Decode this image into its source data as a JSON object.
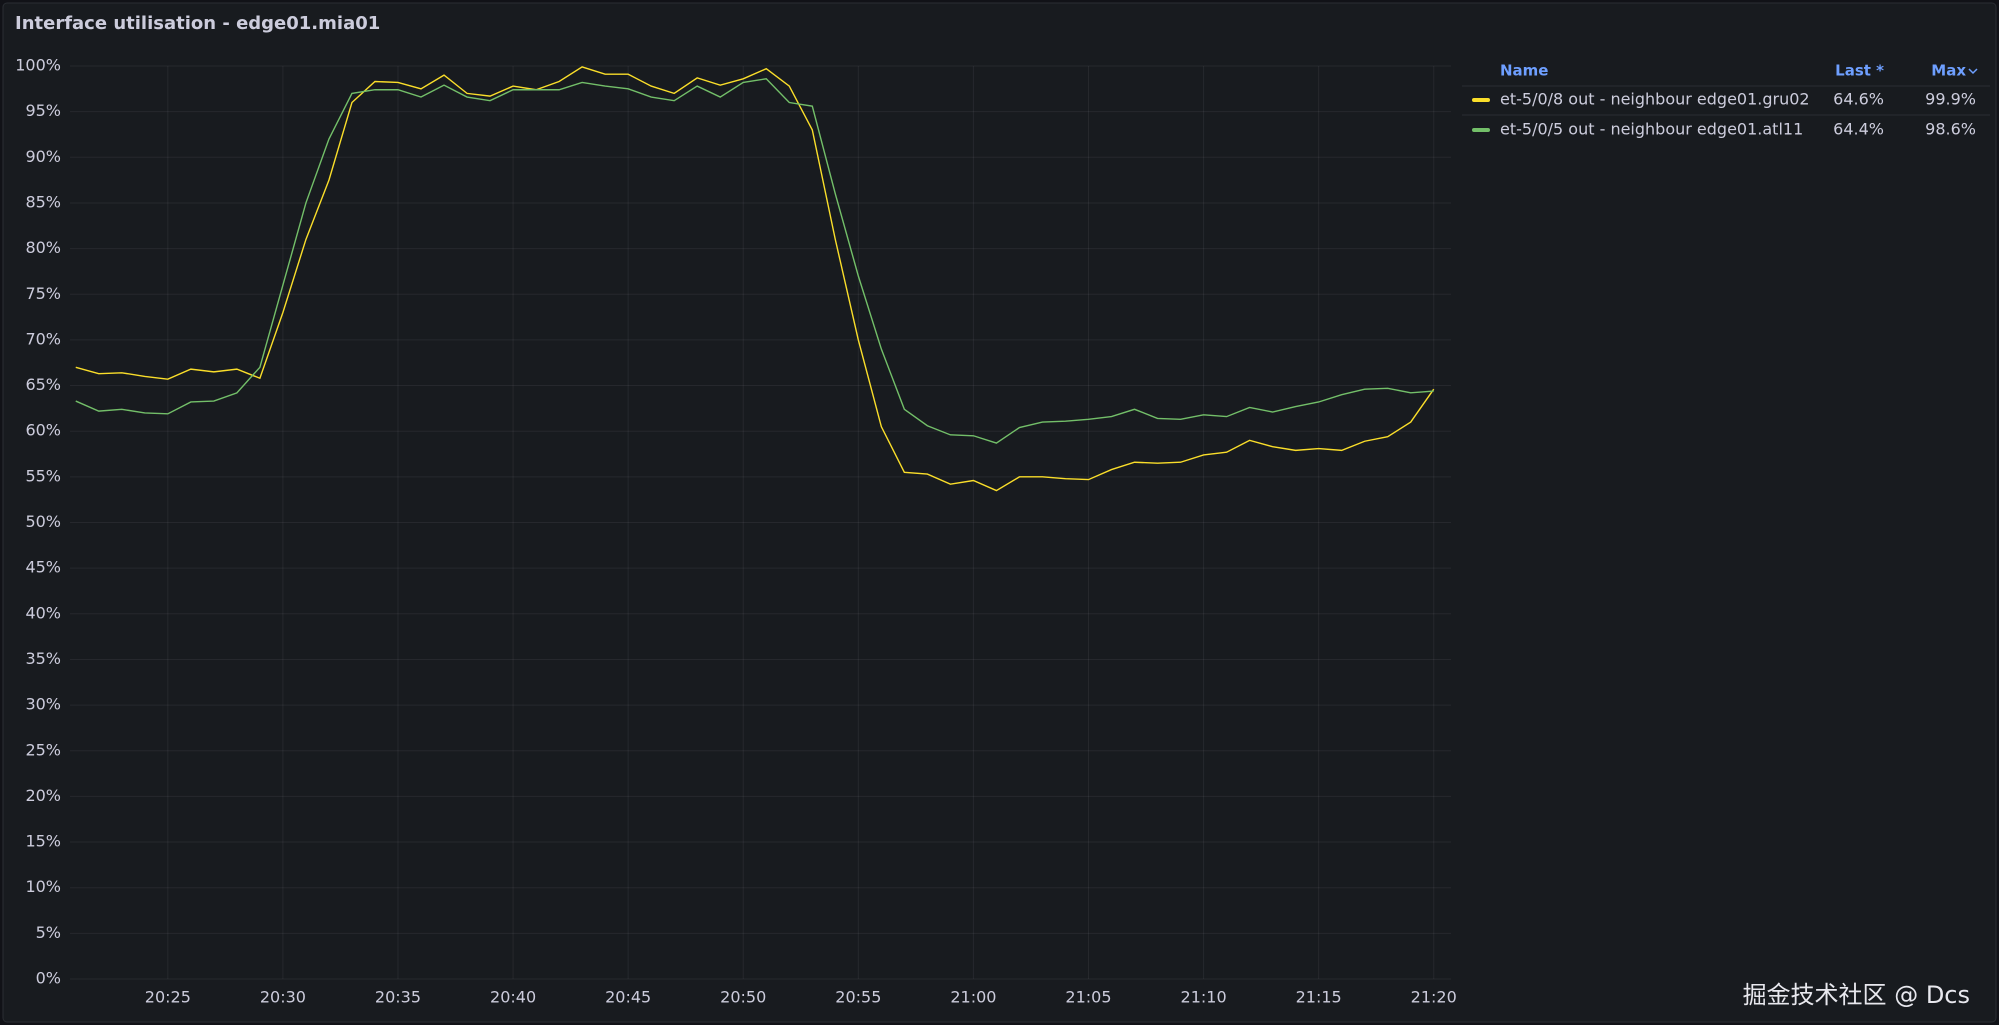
{
  "chart_data": {
    "type": "line",
    "title": "Interface utilisation - edge01.mia01",
    "x": [
      "20:21",
      "20:22",
      "20:23",
      "20:24",
      "20:25",
      "20:26",
      "20:27",
      "20:28",
      "20:29",
      "20:30",
      "20:31",
      "20:32",
      "20:33",
      "20:34",
      "20:35",
      "20:36",
      "20:37",
      "20:38",
      "20:39",
      "20:40",
      "20:41",
      "20:42",
      "20:43",
      "20:44",
      "20:45",
      "20:46",
      "20:47",
      "20:48",
      "20:49",
      "20:50",
      "20:51",
      "20:52",
      "20:53",
      "20:54",
      "20:55",
      "20:56",
      "20:57",
      "20:58",
      "20:59",
      "21:00",
      "21:01",
      "21:02",
      "21:03",
      "21:04",
      "21:05",
      "21:06",
      "21:07",
      "21:08",
      "21:09",
      "21:10",
      "21:11",
      "21:12",
      "21:13",
      "21:14",
      "21:15",
      "21:16",
      "21:17",
      "21:18",
      "21:19",
      "21:20"
    ],
    "series": [
      {
        "name": "et-5/0/8 out - neighbour edge01.gru02",
        "color": "#fade2a",
        "values": [
          67,
          66.3,
          66.4,
          66,
          65.7,
          66.8,
          66.5,
          66.8,
          65.8,
          73,
          81,
          87.5,
          96,
          98.3,
          98.2,
          97.5,
          99,
          97,
          96.7,
          97.8,
          97.4,
          98.3,
          99.9,
          99.1,
          99.1,
          97.8,
          97,
          98.7,
          97.9,
          98.6,
          99.7,
          97.8,
          93,
          81,
          70,
          60.5,
          55.5,
          55.3,
          54.2,
          54.6,
          53.5,
          55,
          55,
          54.8,
          54.7,
          55.8,
          56.6,
          56.5,
          56.6,
          57.4,
          57.7,
          59,
          58.3,
          57.9,
          58.1,
          57.9,
          58.9,
          59.4,
          61,
          64.6
        ],
        "last": "64.6%",
        "max": "99.9%"
      },
      {
        "name": "et-5/0/5 out - neighbour edge01.atl11",
        "color": "#73bf69",
        "values": [
          63.3,
          62.2,
          62.4,
          62,
          61.9,
          63.2,
          63.3,
          64.2,
          67,
          76,
          85,
          92,
          97,
          97.4,
          97.4,
          96.6,
          97.9,
          96.6,
          96.2,
          97.4,
          97.4,
          97.4,
          98.2,
          97.8,
          97.5,
          96.6,
          96.2,
          97.8,
          96.6,
          98.2,
          98.6,
          96,
          95.6,
          86,
          77,
          69,
          62.4,
          60.6,
          59.6,
          59.5,
          58.7,
          60.4,
          61,
          61.1,
          61.3,
          61.6,
          62.4,
          61.4,
          61.3,
          61.8,
          61.6,
          62.6,
          62.1,
          62.7,
          63.2,
          64,
          64.6,
          64.7,
          64.2,
          64.4
        ],
        "last": "64.4%",
        "max": "98.6%"
      }
    ],
    "legend_columns": [
      "Name",
      "Last *",
      "Max"
    ],
    "xlim": [
      "20:20:45",
      "21:20:45"
    ],
    "xticks": [
      "20:25",
      "20:30",
      "20:35",
      "20:40",
      "20:45",
      "20:50",
      "20:55",
      "21:00",
      "21:05",
      "21:10",
      "21:15",
      "21:20"
    ],
    "ylim": [
      0,
      100
    ],
    "yticks": [
      {
        "value": 0,
        "label": "0%"
      },
      {
        "value": 5,
        "label": "5%"
      },
      {
        "value": 10,
        "label": "10%"
      },
      {
        "value": 15,
        "label": "15%"
      },
      {
        "value": 20,
        "label": "20%"
      },
      {
        "value": 25,
        "label": "25%"
      },
      {
        "value": 30,
        "label": "30%"
      },
      {
        "value": 35,
        "label": "35%"
      },
      {
        "value": 40,
        "label": "40%"
      },
      {
        "value": 45,
        "label": "45%"
      },
      {
        "value": 50,
        "label": "50%"
      },
      {
        "value": 55,
        "label": "55%"
      },
      {
        "value": 60,
        "label": "60%"
      },
      {
        "value": 65,
        "label": "65%"
      },
      {
        "value": 70,
        "label": "70%"
      },
      {
        "value": 75,
        "label": "75%"
      },
      {
        "value": 80,
        "label": "80%"
      },
      {
        "value": 85,
        "label": "85%"
      },
      {
        "value": 90,
        "label": "90%"
      },
      {
        "value": 95,
        "label": "95%"
      },
      {
        "value": 100,
        "label": "100%"
      }
    ],
    "grid": true
  },
  "watermark": "掘金技术社区 @ Dcs"
}
